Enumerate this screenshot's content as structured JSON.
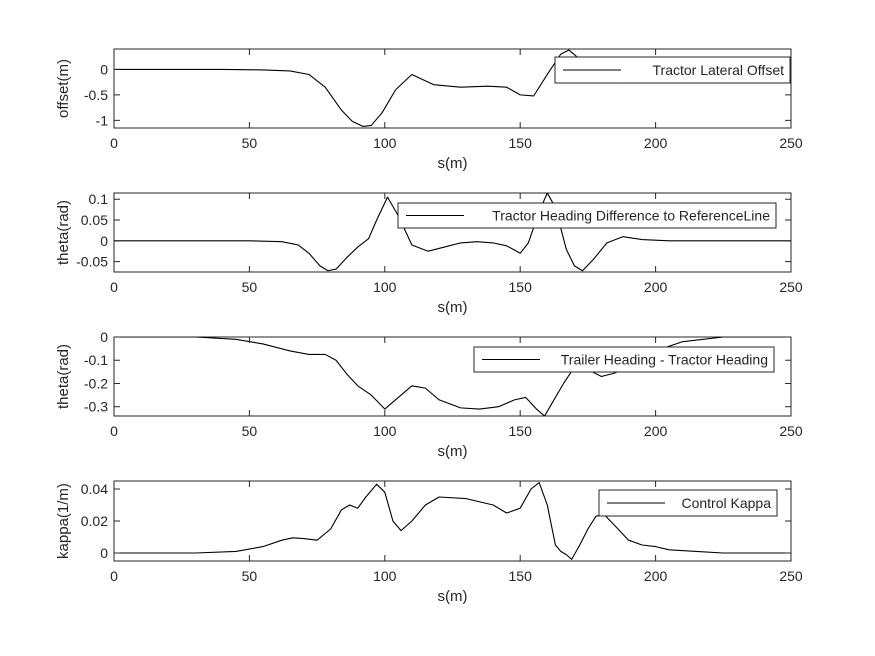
{
  "chart_data": [
    {
      "type": "line",
      "title": "",
      "xlabel": "s(m)",
      "ylabel": "offset(m)",
      "xlim": [
        0,
        250
      ],
      "ylim": [
        -1.15,
        0.4
      ],
      "xticks": [
        0,
        50,
        100,
        150,
        200,
        250
      ],
      "yticks": [
        -1,
        -0.5,
        0
      ],
      "ytick_labels": [
        "-1",
        "-0.5",
        "0"
      ],
      "legend": "top-right",
      "grid": false,
      "series": [
        {
          "name": "Tractor Lateral Offset",
          "x": [
            0,
            40,
            55,
            65,
            72,
            78,
            84,
            88,
            92,
            95,
            99,
            104,
            110,
            118,
            128,
            138,
            145,
            150,
            155,
            160,
            165,
            168,
            172,
            176,
            180,
            186,
            192,
            200,
            210,
            220,
            235,
            250
          ],
          "y": [
            0,
            0,
            -0.01,
            -0.03,
            -0.1,
            -0.35,
            -0.8,
            -1.02,
            -1.12,
            -1.1,
            -0.85,
            -0.4,
            -0.1,
            -0.3,
            -0.35,
            -0.33,
            -0.35,
            -0.5,
            -0.52,
            -0.1,
            0.3,
            0.38,
            0.2,
            -0.05,
            -0.2,
            -0.27,
            -0.15,
            -0.05,
            0,
            0,
            0,
            0
          ]
        }
      ]
    },
    {
      "type": "line",
      "title": "",
      "xlabel": "s(m)",
      "ylabel": "theta(rad)",
      "xlim": [
        0,
        250
      ],
      "ylim": [
        -0.075,
        0.115
      ],
      "xticks": [
        0,
        50,
        100,
        150,
        200,
        250
      ],
      "yticks": [
        -0.05,
        0,
        0.05,
        0.1
      ],
      "ytick_labels": [
        "-0.05",
        "0",
        "0.05",
        "0.1"
      ],
      "legend": "top-right",
      "grid": false,
      "series": [
        {
          "name": "Tractor Heading Difference to ReferenceLine",
          "x": [
            0,
            50,
            62,
            68,
            72,
            76,
            79,
            82,
            86,
            90,
            94,
            97,
            101,
            105,
            110,
            116,
            122,
            128,
            134,
            140,
            145,
            150,
            153,
            157,
            160,
            163,
            167,
            170,
            173,
            177,
            182,
            188,
            195,
            205,
            220,
            250
          ],
          "y": [
            0,
            0,
            -0.002,
            -0.01,
            -0.03,
            -0.06,
            -0.072,
            -0.068,
            -0.04,
            -0.015,
            0.005,
            0.05,
            0.105,
            0.06,
            -0.01,
            -0.025,
            -0.015,
            -0.005,
            -0.002,
            -0.005,
            -0.012,
            -0.03,
            -0.005,
            0.07,
            0.115,
            0.08,
            -0.02,
            -0.06,
            -0.072,
            -0.045,
            -0.005,
            0.01,
            0.003,
            0,
            0,
            0
          ]
        }
      ]
    },
    {
      "type": "line",
      "title": "",
      "xlabel": "s(m)",
      "ylabel": "theta(rad)",
      "xlim": [
        0,
        250
      ],
      "ylim": [
        -0.34,
        0
      ],
      "xticks": [
        0,
        50,
        100,
        150,
        200,
        250
      ],
      "yticks": [
        -0.3,
        -0.2,
        -0.1,
        0
      ],
      "ytick_labels": [
        "-0.3",
        "-0.2",
        "-0.1",
        "0"
      ],
      "legend": "top-right",
      "grid": false,
      "series": [
        {
          "name": "Trailer Heading - Tractor Heading",
          "x": [
            0,
            30,
            45,
            55,
            65,
            72,
            78,
            82,
            86,
            90,
            95,
            100,
            105,
            110,
            115,
            120,
            128,
            135,
            142,
            148,
            152,
            156,
            159,
            162,
            166,
            170,
            175,
            180,
            185,
            192,
            200,
            210,
            225,
            240,
            250
          ],
          "y": [
            0,
            0,
            -0.01,
            -0.03,
            -0.06,
            -0.075,
            -0.075,
            -0.1,
            -0.16,
            -0.21,
            -0.25,
            -0.31,
            -0.26,
            -0.21,
            -0.22,
            -0.27,
            -0.305,
            -0.31,
            -0.3,
            -0.27,
            -0.26,
            -0.31,
            -0.34,
            -0.28,
            -0.2,
            -0.13,
            -0.14,
            -0.17,
            -0.155,
            -0.11,
            -0.06,
            -0.02,
            0,
            0,
            0
          ]
        }
      ]
    },
    {
      "type": "line",
      "title": "",
      "xlabel": "s(m)",
      "ylabel": "kappa(1/m)",
      "xlim": [
        0,
        250
      ],
      "ylim": [
        -0.005,
        0.045
      ],
      "xticks": [
        0,
        50,
        100,
        150,
        200,
        250
      ],
      "yticks": [
        0,
        0.02,
        0.04
      ],
      "ytick_labels": [
        "0",
        "0.02",
        "0.04"
      ],
      "legend": "top-right",
      "grid": false,
      "series": [
        {
          "name": "Control Kappa",
          "x": [
            0,
            30,
            45,
            55,
            62,
            66,
            70,
            75,
            80,
            84,
            87,
            90,
            93,
            97,
            100,
            103,
            106,
            110,
            115,
            120,
            130,
            140,
            145,
            150,
            154,
            157,
            160,
            163,
            165,
            167,
            169,
            172,
            175,
            178,
            181,
            185,
            190,
            195,
            200,
            205,
            215,
            225,
            250
          ],
          "y": [
            0,
            0,
            0.001,
            0.004,
            0.008,
            0.0095,
            0.009,
            0.008,
            0.015,
            0.027,
            0.03,
            0.028,
            0.035,
            0.043,
            0.038,
            0.02,
            0.014,
            0.02,
            0.03,
            0.035,
            0.034,
            0.03,
            0.025,
            0.028,
            0.04,
            0.044,
            0.03,
            0.005,
            0.001,
            -0.001,
            -0.004,
            0.005,
            0.015,
            0.023,
            0.024,
            0.017,
            0.008,
            0.005,
            0.004,
            0.002,
            0.001,
            0,
            0
          ]
        }
      ]
    }
  ]
}
